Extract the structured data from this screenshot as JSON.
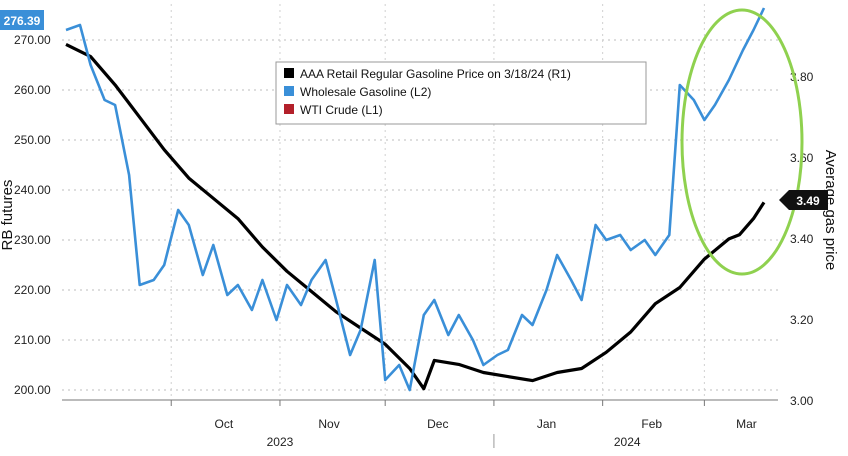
{
  "chart_data": {
    "type": "line",
    "left_axis": {
      "label": "RB futures",
      "ticks": [
        "200.00",
        "210.00",
        "220.00",
        "230.00",
        "240.00",
        "250.00",
        "260.00",
        "270.00"
      ],
      "range": [
        197,
        277
      ],
      "last_value_badge": "276.39"
    },
    "right_axis": {
      "label": "Average gas price",
      "ticks": [
        "3.00",
        "3.20",
        "3.40",
        "3.60",
        "3.80"
      ],
      "range": [
        2.98,
        3.96
      ],
      "last_value_badge": "3.49"
    },
    "x_axis": {
      "months": [
        "Oct",
        "Nov",
        "Dec",
        "Jan",
        "Feb",
        "Mar"
      ],
      "years": [
        "2023",
        "2024"
      ]
    },
    "legend": {
      "placement": "top-center",
      "entries": [
        {
          "label": "AAA Retail Regular Gasoline Price on 3/18/24 (R1)",
          "color": "#000000"
        },
        {
          "label": "Wholesale Gasoline (L2)",
          "color": "#3a8fd8"
        },
        {
          "label": "WTI Crude (L1)",
          "color": "#b3202a"
        }
      ]
    },
    "grid": true,
    "annotation": {
      "type": "ellipse",
      "color": "#8fd14f",
      "target": "March surge"
    },
    "series": [
      {
        "name": "AAA Retail Regular Gasoline Price on 3/18/24 (R1)",
        "axis": "right",
        "color": "#000000",
        "x": [
          "2023-09-01",
          "2023-09-08",
          "2023-09-15",
          "2023-09-22",
          "2023-09-29",
          "2023-10-06",
          "2023-10-13",
          "2023-10-20",
          "2023-10-27",
          "2023-11-03",
          "2023-11-10",
          "2023-11-17",
          "2023-11-24",
          "2023-12-01",
          "2023-12-08",
          "2023-12-12",
          "2023-12-15",
          "2023-12-22",
          "2023-12-29",
          "2024-01-05",
          "2024-01-12",
          "2024-01-19",
          "2024-01-26",
          "2024-02-02",
          "2024-02-09",
          "2024-02-16",
          "2024-02-23",
          "2024-03-01",
          "2024-03-08",
          "2024-03-11",
          "2024-03-15",
          "2024-03-18"
        ],
        "y": [
          3.88,
          3.85,
          3.78,
          3.7,
          3.62,
          3.55,
          3.5,
          3.45,
          3.38,
          3.32,
          3.27,
          3.22,
          3.18,
          3.14,
          3.08,
          3.03,
          3.1,
          3.09,
          3.07,
          3.06,
          3.05,
          3.07,
          3.08,
          3.12,
          3.17,
          3.24,
          3.28,
          3.35,
          3.4,
          3.41,
          3.45,
          3.49
        ]
      },
      {
        "name": "Wholesale Gasoline (L2)",
        "axis": "left",
        "color": "#3a8fd8",
        "x": [
          "2023-09-01",
          "2023-09-05",
          "2023-09-08",
          "2023-09-12",
          "2023-09-15",
          "2023-09-19",
          "2023-09-22",
          "2023-09-26",
          "2023-09-29",
          "2023-10-03",
          "2023-10-06",
          "2023-10-10",
          "2023-10-13",
          "2023-10-17",
          "2023-10-20",
          "2023-10-24",
          "2023-10-27",
          "2023-10-31",
          "2023-11-03",
          "2023-11-07",
          "2023-11-10",
          "2023-11-14",
          "2023-11-17",
          "2023-11-21",
          "2023-11-24",
          "2023-11-28",
          "2023-12-01",
          "2023-12-05",
          "2023-12-08",
          "2023-12-12",
          "2023-12-15",
          "2023-12-19",
          "2023-12-22",
          "2023-12-26",
          "2023-12-29",
          "2024-01-02",
          "2024-01-05",
          "2024-01-09",
          "2024-01-12",
          "2024-01-16",
          "2024-01-19",
          "2024-01-23",
          "2024-01-26",
          "2024-01-30",
          "2024-02-02",
          "2024-02-06",
          "2024-02-09",
          "2024-02-13",
          "2024-02-16",
          "2024-02-20",
          "2024-02-23",
          "2024-02-27",
          "2024-03-01",
          "2024-03-04",
          "2024-03-08",
          "2024-03-12",
          "2024-03-15",
          "2024-03-18"
        ],
        "y": [
          272,
          273,
          265,
          258,
          257,
          243,
          221,
          222,
          225,
          236,
          233,
          223,
          229,
          219,
          221,
          216,
          222,
          214,
          221,
          217,
          222,
          226,
          218,
          207,
          212,
          226,
          202,
          205,
          200,
          215,
          218,
          211,
          215,
          210,
          205,
          207,
          208,
          215,
          213,
          220,
          227,
          222,
          218,
          233,
          230,
          231,
          228,
          230,
          227,
          231,
          261,
          258,
          254,
          257,
          262,
          268,
          272,
          276.4
        ]
      }
    ]
  }
}
